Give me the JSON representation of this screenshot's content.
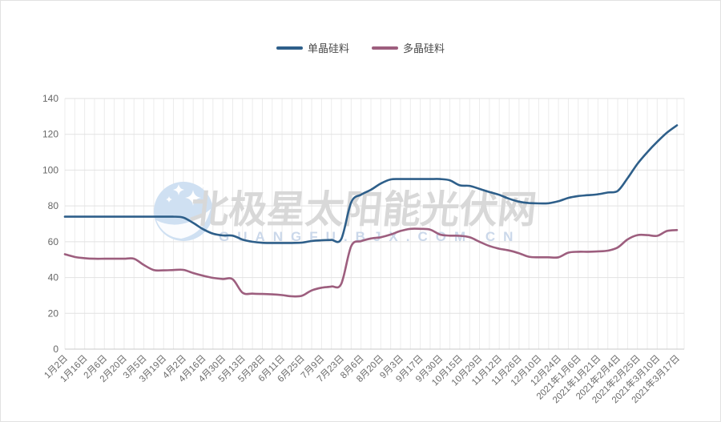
{
  "watermark": {
    "logo": "moon-stars-icon",
    "text": "北极星太阳能光伏网",
    "subtext": "GUANGFU.BJX.COM.CN",
    "text_color": "#d8d8d8",
    "subtext_color": "#cbd8ea",
    "logo_color": "#cfe0f2"
  },
  "chart_data": {
    "type": "line",
    "title": "",
    "xlabel": "",
    "ylabel": "",
    "ylim": [
      0,
      140
    ],
    "y_ticks": [
      0,
      20,
      40,
      60,
      80,
      100,
      120,
      140
    ],
    "grid": true,
    "legend_position": "top-center",
    "smooth": true,
    "label_every": 2,
    "x_labels": [
      "1月2日",
      "1月16日",
      "2月6日",
      "2月20日",
      "3月5日",
      "3月19日",
      "4月2日",
      "4月16日",
      "4月30日",
      "5月13日",
      "5月28日",
      "6月11日",
      "6月25日",
      "7月9日",
      "7月23日",
      "8月6日",
      "8月20日",
      "9月3日",
      "9月17日",
      "9月30日",
      "10月15日",
      "10月29日",
      "11月12日",
      "11月26日",
      "12月10日",
      "12月24日",
      "2021年1月6日",
      "2021年1月21日",
      "2021年2月4日",
      "2021年2月25日",
      "2021年3月10日",
      "2021年3月17日"
    ],
    "series": [
      {
        "name": "单晶硅料",
        "color": "#2e5f8a",
        "values": [
          74,
          74,
          74,
          74,
          74,
          74,
          74,
          74,
          74,
          74,
          74,
          74,
          73.5,
          70.5,
          67,
          64.5,
          63.5,
          63.4,
          61.2,
          60,
          59.4,
          59.3,
          59.3,
          59.3,
          59.5,
          60.4,
          60.8,
          61,
          61.5,
          82,
          86.3,
          89,
          92.5,
          94.8,
          95,
          95,
          95,
          95,
          95,
          94.3,
          91.5,
          91.2,
          89.5,
          87.8,
          86.2,
          84,
          82.4,
          81.6,
          81.4,
          81.5,
          82.6,
          84.5,
          85.5,
          86,
          86.5,
          87.5,
          88.4,
          95.5,
          103.5,
          110,
          115.8,
          121,
          125
        ]
      },
      {
        "name": "多晶硅料",
        "color": "#9d5e7e",
        "values": [
          53,
          51.5,
          50.8,
          50.5,
          50.5,
          50.5,
          50.5,
          50.5,
          47,
          44.2,
          44,
          44.2,
          44.3,
          42.5,
          41,
          39.8,
          39.2,
          39,
          31.5,
          31,
          30.8,
          30.6,
          30.2,
          29.5,
          29.8,
          32.8,
          34.3,
          35,
          36.5,
          57.5,
          60.3,
          61.8,
          62.5,
          64,
          66,
          67.2,
          67.2,
          66.8,
          64,
          63.4,
          63.3,
          62.5,
          60,
          57.6,
          56.1,
          55.1,
          53.6,
          51.6,
          51.3,
          51.3,
          51.3,
          53.9,
          54.4,
          54.4,
          54.6,
          55,
          56.8,
          61.3,
          63.7,
          63.7,
          63.3,
          66,
          66.5
        ]
      }
    ]
  }
}
